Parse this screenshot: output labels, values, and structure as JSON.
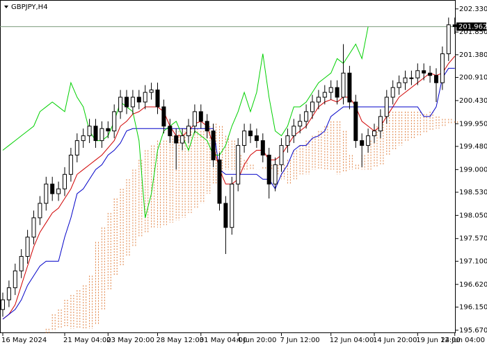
{
  "chart_data": {
    "type": "candlestick",
    "title": "GBPJPY,H4",
    "categories": [
      "16 May 2024",
      null,
      null,
      null,
      null,
      null,
      null,
      null,
      null,
      null,
      "21 May 04:00",
      null,
      null,
      null,
      null,
      null,
      null,
      "23 May 20:00",
      null,
      null,
      null,
      null,
      null,
      null,
      null,
      "28 May 12:00",
      null,
      null,
      null,
      null,
      null,
      null,
      "31 May 04:00",
      null,
      null,
      null,
      null,
      null,
      "4 Jun 20:00",
      null,
      null,
      null,
      null,
      null,
      null,
      "7 Jun 12:00",
      null,
      null,
      null,
      null,
      null,
      null,
      null,
      "12 Jun 04:00",
      null,
      null,
      null,
      null,
      null,
      null,
      "14 Jun 20:00",
      null,
      null,
      null,
      null,
      null,
      null,
      "19 Jun 12:00",
      null,
      null,
      null,
      null,
      null,
      "24 Jun 04:00"
    ],
    "open": [
      196.1,
      196.3,
      196.55,
      196.9,
      197.2,
      197.6,
      198.0,
      198.3,
      198.7,
      198.5,
      198.6,
      198.9,
      199.3,
      199.6,
      199.7,
      199.9,
      199.6,
      199.85,
      199.8,
      200.2,
      200.5,
      200.3,
      200.5,
      200.4,
      200.6,
      200.65,
      200.3,
      199.9,
      199.7,
      199.55,
      199.7,
      199.9,
      200.2,
      200.0,
      199.8,
      199.2,
      198.3,
      197.8,
      198.7,
      199.5,
      199.8,
      199.7,
      199.6,
      199.3,
      198.7,
      199.1,
      199.5,
      199.7,
      199.9,
      200.0,
      200.2,
      200.4,
      200.5,
      200.6,
      200.7,
      200.5,
      201.0,
      200.4,
      199.6,
      199.5,
      199.7,
      199.8,
      200.1,
      200.5,
      200.7,
      200.8,
      200.9,
      200.9,
      201.05,
      201.0,
      200.95,
      200.8,
      201.4,
      202.0
    ],
    "high": [
      196.45,
      196.7,
      197.05,
      197.35,
      197.75,
      198.15,
      198.45,
      198.85,
      198.85,
      198.75,
      199.05,
      199.45,
      199.75,
      199.85,
      200.05,
      200.05,
      200.0,
      200.0,
      200.35,
      200.65,
      200.65,
      200.65,
      200.65,
      200.75,
      200.8,
      200.8,
      200.45,
      200.05,
      199.85,
      199.85,
      200.05,
      200.35,
      200.35,
      200.15,
      199.95,
      199.35,
      198.45,
      198.85,
      199.65,
      199.95,
      199.95,
      199.85,
      199.75,
      199.45,
      199.25,
      199.65,
      199.85,
      200.05,
      200.15,
      200.35,
      200.55,
      200.65,
      200.75,
      200.85,
      200.85,
      201.6,
      201.15,
      200.55,
      199.75,
      199.85,
      199.95,
      200.25,
      200.65,
      200.85,
      200.95,
      201.05,
      201.05,
      201.2,
      201.2,
      201.15,
      201.1,
      201.55,
      202.15,
      202.15
    ],
    "low": [
      195.95,
      196.15,
      196.4,
      196.75,
      197.05,
      197.45,
      197.85,
      198.15,
      198.35,
      198.35,
      198.45,
      198.75,
      199.15,
      199.45,
      199.55,
      199.45,
      199.45,
      199.65,
      199.65,
      200.05,
      200.15,
      200.15,
      200.25,
      200.25,
      200.45,
      200.15,
      199.75,
      199.55,
      199.0,
      199.4,
      199.55,
      199.75,
      199.85,
      199.65,
      199.05,
      198.15,
      197.25,
      197.65,
      198.55,
      199.35,
      199.55,
      199.45,
      199.15,
      198.4,
      198.55,
      198.95,
      199.35,
      199.55,
      199.75,
      199.85,
      200.05,
      200.25,
      200.35,
      200.45,
      200.35,
      200.35,
      200.25,
      199.45,
      199.05,
      199.35,
      199.55,
      199.65,
      199.95,
      200.35,
      200.55,
      200.65,
      200.75,
      200.75,
      200.85,
      200.8,
      200.4,
      200.65,
      201.25,
      201.81
    ],
    "close": [
      196.3,
      196.55,
      196.9,
      197.2,
      197.6,
      198.0,
      198.3,
      198.7,
      198.5,
      198.6,
      198.9,
      199.3,
      199.6,
      199.7,
      199.9,
      199.6,
      199.85,
      199.8,
      200.2,
      200.5,
      200.3,
      200.5,
      200.4,
      200.6,
      200.65,
      200.3,
      199.9,
      199.7,
      199.55,
      199.7,
      199.9,
      200.2,
      200.0,
      199.8,
      199.2,
      198.3,
      197.8,
      198.7,
      199.5,
      199.8,
      199.7,
      199.6,
      199.3,
      198.7,
      199.1,
      199.5,
      199.7,
      199.9,
      200.0,
      200.2,
      200.4,
      200.5,
      200.6,
      200.7,
      200.5,
      201.0,
      200.4,
      199.6,
      199.5,
      199.7,
      199.8,
      200.1,
      200.5,
      200.7,
      200.8,
      200.9,
      200.9,
      201.05,
      201.0,
      200.95,
      200.8,
      201.4,
      202.0,
      201.962
    ],
    "color_up": "#ffffff",
    "color_down": "#000000",
    "lines": [
      {
        "color": "#d00000",
        "values": [
          195.9,
          196.0,
          196.2,
          196.6,
          197.0,
          197.4,
          197.7,
          197.9,
          198.1,
          198.2,
          198.4,
          198.6,
          198.9,
          199.0,
          199.1,
          199.2,
          199.3,
          199.45,
          199.6,
          199.9,
          200.0,
          200.15,
          200.2,
          200.3,
          200.3,
          200.3,
          200.2,
          199.9,
          199.7,
          199.7,
          199.8,
          199.95,
          200.0,
          199.9,
          199.5,
          199.0,
          198.7,
          198.7,
          198.8,
          199.1,
          199.3,
          199.4,
          199.4,
          199.2,
          199.2,
          199.3,
          199.5,
          199.7,
          199.8,
          199.9,
          200.1,
          200.3,
          200.4,
          200.45,
          200.4,
          200.5,
          200.5,
          200.3,
          200.0,
          199.9,
          199.8,
          199.9,
          200.1,
          200.3,
          200.5,
          200.6,
          200.7,
          200.8,
          200.9,
          201.0,
          200.95,
          201.0,
          201.2,
          201.35
        ]
      },
      {
        "color": "#0000c8",
        "values": [
          195.9,
          196.0,
          196.1,
          196.3,
          196.6,
          196.8,
          197.0,
          197.1,
          197.1,
          197.1,
          197.6,
          198.0,
          198.5,
          198.6,
          198.8,
          199.0,
          199.1,
          199.3,
          199.4,
          199.55,
          199.8,
          199.85,
          199.85,
          199.85,
          199.85,
          199.85,
          199.85,
          199.85,
          199.85,
          199.85,
          199.85,
          199.85,
          199.85,
          199.85,
          199.85,
          199.0,
          198.9,
          198.9,
          198.9,
          198.9,
          198.9,
          198.9,
          198.8,
          198.8,
          198.6,
          198.9,
          199.1,
          199.4,
          199.5,
          199.5,
          199.65,
          199.7,
          199.8,
          200.1,
          200.2,
          200.3,
          200.3,
          200.3,
          200.3,
          200.3,
          200.3,
          200.3,
          200.3,
          200.3,
          200.3,
          200.3,
          200.3,
          200.3,
          200.1,
          200.1,
          200.3,
          200.9,
          201.1,
          201.1
        ]
      },
      {
        "color": "#00d000",
        "values": [
          199.4,
          199.5,
          199.6,
          199.7,
          199.8,
          199.9,
          200.2,
          200.3,
          200.4,
          200.3,
          200.2,
          200.8,
          200.5,
          200.3,
          199.8,
          199.6,
          199.6,
          199.7,
          200.0,
          200.4,
          200.3,
          200.2,
          199.6,
          198.0,
          198.5,
          199.4,
          199.8,
          199.9,
          200.0,
          199.7,
          199.4,
          199.8,
          199.7,
          199.6,
          199.3,
          199.3,
          199.5,
          199.9,
          200.2,
          200.6,
          200.2,
          200.6,
          201.4,
          200.5,
          199.8,
          199.7,
          199.9,
          200.3,
          200.3,
          200.4,
          200.6,
          200.8,
          200.9,
          201.0,
          201.3,
          201.2,
          201.4,
          201.6,
          201.3,
          201.96,
          null,
          null,
          null,
          null,
          null,
          null,
          null,
          null,
          null,
          null,
          null,
          null,
          null,
          null
        ]
      }
    ],
    "cloud": {
      "color": "#e08040",
      "span_a": [
        null,
        null,
        null,
        null,
        null,
        null,
        null,
        195.7,
        196.0,
        196.1,
        196.3,
        196.4,
        196.5,
        196.6,
        196.8,
        197.5,
        197.8,
        198.1,
        198.4,
        198.6,
        198.8,
        199.0,
        199.2,
        199.4,
        199.5,
        199.6,
        199.6,
        199.7,
        199.8,
        199.85,
        199.85,
        199.85,
        199.8,
        199.9,
        199.95,
        199.9,
        199.7,
        199.6,
        199.3,
        199.2,
        199.1,
        199.0,
        199.05,
        199.1,
        199.1,
        199.1,
        199.2,
        199.4,
        199.5,
        199.6,
        199.7,
        199.8,
        199.9,
        200.0,
        200.0,
        199.8,
        199.3,
        199.1,
        199.3,
        199.6,
        199.9,
        200.0,
        200.2,
        200.2,
        200.2,
        200.2,
        200.2,
        200.2,
        200.15,
        200.2,
        200.1,
        200.05,
        200.05,
        200.0
      ],
      "span_b": [
        null,
        null,
        null,
        null,
        null,
        null,
        null,
        195.6,
        195.65,
        195.7,
        195.75,
        195.7,
        195.7,
        195.7,
        195.7,
        195.8,
        196.1,
        196.5,
        196.8,
        197.0,
        197.2,
        197.4,
        197.6,
        197.7,
        197.8,
        197.8,
        197.85,
        197.9,
        197.95,
        198.0,
        198.1,
        198.2,
        198.3,
        198.5,
        198.7,
        198.9,
        199.0,
        199.0,
        199.0,
        199.0,
        199.0,
        199.0,
        199.0,
        199.0,
        198.9,
        198.8,
        198.7,
        198.8,
        198.9,
        198.9,
        199.0,
        199.0,
        199.0,
        199.0,
        198.9,
        198.95,
        199.0,
        199.0,
        199.0,
        199.0,
        199.05,
        199.1,
        199.3,
        199.4,
        199.5,
        199.6,
        199.65,
        199.7,
        199.75,
        199.8,
        199.85,
        199.9,
        199.95,
        199.95
      ]
    },
    "current_price": 201.962,
    "ylim": [
      195.61,
      202.5
    ],
    "yticks": [
      {
        "value": 202.33,
        "label": "202.330"
      },
      {
        "value": 201.85,
        "label": "201.850"
      },
      {
        "value": 201.38,
        "label": "201.380"
      },
      {
        "value": 200.91,
        "label": "200.910"
      },
      {
        "value": 200.43,
        "label": "200.430"
      },
      {
        "value": 199.95,
        "label": "199.950"
      },
      {
        "value": 199.48,
        "label": "199.480"
      },
      {
        "value": 199,
        "label": "199.000"
      },
      {
        "value": 198.53,
        "label": "198.530"
      },
      {
        "value": 198.05,
        "label": "198.050"
      },
      {
        "value": 197.57,
        "label": "197.570"
      },
      {
        "value": 197.1,
        "label": "197.100"
      },
      {
        "value": 196.62,
        "label": "196.620"
      },
      {
        "value": 196.15,
        "label": "196.150"
      },
      {
        "value": 195.67,
        "label": "195.670"
      }
    ]
  }
}
